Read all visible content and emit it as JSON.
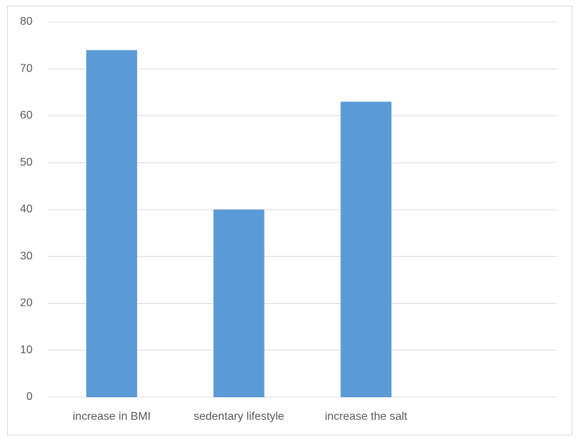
{
  "chart_data": {
    "type": "bar",
    "categories": [
      "increase in BMI",
      "sedentary lifestyle",
      "increase the salt",
      null
    ],
    "values": [
      74,
      40,
      63,
      null
    ],
    "color": "#5b9bd5",
    "ylim": [
      0,
      80
    ],
    "yticks": [
      0,
      10,
      20,
      30,
      40,
      50,
      60,
      70,
      80
    ],
    "grid": true
  }
}
